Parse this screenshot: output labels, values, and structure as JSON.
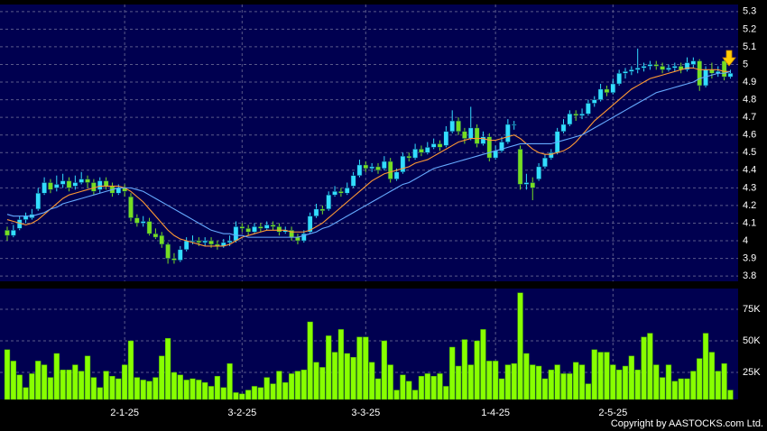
{
  "chart_data": [
    {
      "type": "candlestick",
      "ylim": [
        3.77,
        5.34
      ],
      "yticks": [
        5.3,
        5.2,
        5.1,
        5,
        4.9,
        4.8,
        4.7,
        4.6,
        4.5,
        4.4,
        4.3,
        4.2,
        4.1,
        4,
        3.9,
        3.8
      ],
      "grid": true,
      "up_color": "#33ddff",
      "down_color": "#77dd22",
      "ohlc": [
        [
          4.06,
          4.08,
          4.0,
          4.03
        ],
        [
          4.03,
          4.09,
          4.02,
          4.06
        ],
        [
          4.07,
          4.14,
          4.06,
          4.12
        ],
        [
          4.12,
          4.16,
          4.1,
          4.14
        ],
        [
          4.13,
          4.18,
          4.12,
          4.15
        ],
        [
          4.18,
          4.3,
          4.17,
          4.27
        ],
        [
          4.27,
          4.36,
          4.26,
          4.33
        ],
        [
          4.33,
          4.35,
          4.27,
          4.29
        ],
        [
          4.3,
          4.37,
          4.28,
          4.32
        ],
        [
          4.32,
          4.38,
          4.3,
          4.34
        ],
        [
          4.34,
          4.36,
          4.28,
          4.3
        ],
        [
          4.31,
          4.37,
          4.29,
          4.33
        ],
        [
          4.33,
          4.39,
          4.32,
          4.35
        ],
        [
          4.35,
          4.37,
          4.3,
          4.33
        ],
        [
          4.33,
          4.35,
          4.26,
          4.28
        ],
        [
          4.29,
          4.36,
          4.27,
          4.34
        ],
        [
          4.34,
          4.36,
          4.29,
          4.31
        ],
        [
          4.31,
          4.33,
          4.25,
          4.27
        ],
        [
          4.27,
          4.32,
          4.26,
          4.3
        ],
        [
          4.3,
          4.32,
          4.25,
          4.28
        ],
        [
          4.25,
          4.27,
          4.11,
          4.13
        ],
        [
          4.13,
          4.15,
          4.08,
          4.1
        ],
        [
          4.1,
          4.14,
          4.08,
          4.11
        ],
        [
          4.11,
          4.13,
          4.03,
          4.04
        ],
        [
          4.04,
          4.07,
          4.01,
          4.02
        ],
        [
          4.03,
          4.05,
          3.96,
          3.98
        ],
        [
          3.98,
          3.99,
          3.87,
          3.9
        ],
        [
          3.9,
          3.93,
          3.87,
          3.89
        ],
        [
          3.89,
          3.97,
          3.88,
          3.95
        ],
        [
          3.95,
          4.02,
          3.94,
          4.0
        ],
        [
          4.0,
          4.03,
          3.98,
          4.0
        ],
        [
          4.0,
          4.02,
          3.97,
          3.99
        ],
        [
          3.99,
          4.02,
          3.97,
          4.0
        ],
        [
          4.0,
          4.02,
          3.96,
          3.98
        ],
        [
          3.98,
          4.0,
          3.95,
          3.97
        ],
        [
          3.97,
          4.01,
          3.96,
          3.99
        ],
        [
          3.99,
          4.03,
          3.97,
          4.0
        ],
        [
          4.0,
          4.11,
          3.99,
          4.08
        ],
        [
          4.08,
          4.1,
          4.05,
          4.07
        ],
        [
          4.07,
          4.09,
          4.03,
          4.05
        ],
        [
          4.05,
          4.1,
          4.04,
          4.08
        ],
        [
          4.08,
          4.1,
          4.05,
          4.07
        ],
        [
          4.07,
          4.11,
          4.06,
          4.09
        ],
        [
          4.09,
          4.11,
          4.06,
          4.08
        ],
        [
          4.08,
          4.1,
          4.03,
          4.05
        ],
        [
          4.05,
          4.08,
          4.04,
          4.06
        ],
        [
          4.06,
          4.08,
          4.0,
          4.02
        ],
        [
          4.02,
          4.04,
          3.98,
          4.0
        ],
        [
          4.0,
          4.06,
          3.99,
          4.04
        ],
        [
          4.05,
          4.16,
          4.04,
          4.14
        ],
        [
          4.14,
          4.21,
          4.13,
          4.18
        ],
        [
          4.18,
          4.2,
          4.15,
          4.17
        ],
        [
          4.18,
          4.28,
          4.17,
          4.26
        ],
        [
          4.26,
          4.31,
          4.25,
          4.28
        ],
        [
          4.28,
          4.3,
          4.25,
          4.27
        ],
        [
          4.27,
          4.33,
          4.26,
          4.3
        ],
        [
          4.31,
          4.39,
          4.3,
          4.37
        ],
        [
          4.37,
          4.46,
          4.36,
          4.43
        ],
        [
          4.43,
          4.45,
          4.39,
          4.41
        ],
        [
          4.41,
          4.44,
          4.39,
          4.42
        ],
        [
          4.42,
          4.44,
          4.38,
          4.4
        ],
        [
          4.41,
          4.48,
          4.4,
          4.45
        ],
        [
          4.45,
          4.47,
          4.33,
          4.35
        ],
        [
          4.35,
          4.41,
          4.34,
          4.39
        ],
        [
          4.39,
          4.5,
          4.38,
          4.48
        ],
        [
          4.48,
          4.5,
          4.45,
          4.47
        ],
        [
          4.47,
          4.55,
          4.46,
          4.52
        ],
        [
          4.52,
          4.54,
          4.48,
          4.5
        ],
        [
          4.5,
          4.56,
          4.49,
          4.53
        ],
        [
          4.53,
          4.58,
          4.52,
          4.55
        ],
        [
          4.55,
          4.57,
          4.51,
          4.53
        ],
        [
          4.54,
          4.65,
          4.53,
          4.62
        ],
        [
          4.62,
          4.74,
          4.61,
          4.68
        ],
        [
          4.68,
          4.7,
          4.6,
          4.62
        ],
        [
          4.62,
          4.64,
          4.55,
          4.58
        ],
        [
          4.58,
          4.76,
          4.57,
          4.64
        ],
        [
          4.64,
          4.66,
          4.53,
          4.55
        ],
        [
          4.55,
          4.62,
          4.54,
          4.59
        ],
        [
          4.59,
          4.61,
          4.45,
          4.47
        ],
        [
          4.47,
          4.54,
          4.46,
          4.51
        ],
        [
          4.51,
          4.59,
          4.5,
          4.56
        ],
        [
          4.56,
          4.69,
          4.55,
          4.66
        ],
        [
          4.66,
          4.68,
          4.63,
          4.66
        ],
        [
          4.52,
          4.54,
          4.29,
          4.32
        ],
        [
          4.32,
          4.38,
          4.29,
          4.33
        ],
        [
          4.33,
          4.36,
          4.23,
          4.3
        ],
        [
          4.35,
          4.44,
          4.34,
          4.42
        ],
        [
          4.42,
          4.49,
          4.41,
          4.47
        ],
        [
          4.47,
          4.52,
          4.46,
          4.5
        ],
        [
          4.5,
          4.64,
          4.49,
          4.62
        ],
        [
          4.62,
          4.69,
          4.61,
          4.66
        ],
        [
          4.66,
          4.74,
          4.65,
          4.72
        ],
        [
          4.72,
          4.74,
          4.68,
          4.71
        ],
        [
          4.71,
          4.75,
          4.69,
          4.72
        ],
        [
          4.72,
          4.8,
          4.71,
          4.78
        ],
        [
          4.78,
          4.82,
          4.76,
          4.8
        ],
        [
          4.8,
          4.89,
          4.79,
          4.86
        ],
        [
          4.86,
          4.88,
          4.82,
          4.84
        ],
        [
          4.84,
          4.92,
          4.83,
          4.89
        ],
        [
          4.89,
          4.97,
          4.88,
          4.95
        ],
        [
          4.95,
          4.98,
          4.92,
          4.96
        ],
        [
          4.96,
          4.99,
          4.94,
          4.97
        ],
        [
          4.97,
          5.09,
          4.95,
          4.98
        ],
        [
          4.98,
          5.01,
          4.96,
          4.99
        ],
        [
          4.99,
          5.02,
          4.97,
          5.0
        ],
        [
          5.0,
          5.02,
          4.97,
          4.99
        ],
        [
          4.99,
          5.01,
          4.95,
          4.97
        ],
        [
          4.97,
          5.0,
          4.96,
          4.98
        ],
        [
          4.98,
          5.01,
          4.96,
          4.99
        ],
        [
          4.99,
          5.01,
          4.95,
          4.97
        ],
        [
          4.97,
          5.04,
          4.96,
          5.01
        ],
        [
          5.0,
          5.04,
          4.98,
          5.02
        ],
        [
          5.02,
          5.03,
          4.85,
          4.88
        ],
        [
          4.88,
          4.99,
          4.87,
          4.97
        ],
        [
          4.97,
          5.01,
          4.92,
          4.95
        ],
        [
          4.95,
          4.99,
          4.93,
          4.96
        ],
        [
          5.02,
          5.03,
          4.91,
          4.93
        ],
        [
          4.93,
          4.97,
          4.92,
          4.95
        ]
      ],
      "lines": [
        {
          "color": "#ff9933",
          "values": [
            4.12,
            4.11,
            4.1,
            4.09,
            4.1,
            4.12,
            4.15,
            4.18,
            4.21,
            4.24,
            4.26,
            4.27,
            4.28,
            4.29,
            4.3,
            4.31,
            4.31,
            4.31,
            4.31,
            4.3,
            4.28,
            4.25,
            4.22,
            4.18,
            4.14,
            4.1,
            4.06,
            4.03,
            4.01,
            4.0,
            3.99,
            3.98,
            3.97,
            3.97,
            3.97,
            3.97,
            3.98,
            4.0,
            4.02,
            4.03,
            4.04,
            4.05,
            4.06,
            4.06,
            4.06,
            4.06,
            4.05,
            4.05,
            4.05,
            4.06,
            4.08,
            4.1,
            4.13,
            4.16,
            4.19,
            4.22,
            4.25,
            4.28,
            4.31,
            4.34,
            4.36,
            4.38,
            4.39,
            4.4,
            4.41,
            4.42,
            4.44,
            4.45,
            4.46,
            4.48,
            4.5,
            4.52,
            4.54,
            4.56,
            4.57,
            4.58,
            4.58,
            4.58,
            4.57,
            4.57,
            4.58,
            4.59,
            4.6,
            4.58,
            4.55,
            4.52,
            4.5,
            4.49,
            4.49,
            4.5,
            4.51,
            4.53,
            4.56,
            4.6,
            4.64,
            4.68,
            4.71,
            4.74,
            4.77,
            4.8,
            4.83,
            4.86,
            4.88,
            4.9,
            4.92,
            4.93,
            4.94,
            4.95,
            4.96,
            4.97,
            4.98,
            4.98,
            4.97,
            4.97,
            4.97,
            4.97,
            4.96,
            4.96
          ]
        },
        {
          "color": "#66aaff",
          "values": [
            4.15,
            4.14,
            4.14,
            4.14,
            4.14,
            4.15,
            4.16,
            4.18,
            4.19,
            4.21,
            4.22,
            4.23,
            4.24,
            4.25,
            4.26,
            4.27,
            4.28,
            4.29,
            4.3,
            4.3,
            4.3,
            4.29,
            4.28,
            4.26,
            4.24,
            4.22,
            4.2,
            4.18,
            4.16,
            4.14,
            4.12,
            4.1,
            4.08,
            4.06,
            4.05,
            4.04,
            4.04,
            4.03,
            4.03,
            4.02,
            4.02,
            4.02,
            4.02,
            4.02,
            4.02,
            4.02,
            4.02,
            4.02,
            4.03,
            4.04,
            4.05,
            4.07,
            4.08,
            4.1,
            4.12,
            4.14,
            4.16,
            4.18,
            4.2,
            4.22,
            4.24,
            4.26,
            4.28,
            4.3,
            4.32,
            4.33,
            4.35,
            4.37,
            4.39,
            4.41,
            4.42,
            4.43,
            4.44,
            4.45,
            4.46,
            4.47,
            4.48,
            4.49,
            4.5,
            4.51,
            4.52,
            4.53,
            4.54,
            4.55,
            4.55,
            4.55,
            4.55,
            4.55,
            4.55,
            4.56,
            4.57,
            4.58,
            4.59,
            4.6,
            4.62,
            4.64,
            4.66,
            4.68,
            4.7,
            4.72,
            4.74,
            4.76,
            4.78,
            4.8,
            4.82,
            4.84,
            4.85,
            4.86,
            4.87,
            4.88,
            4.89,
            4.9,
            4.92,
            4.93,
            4.94,
            4.95,
            4.95,
            4.96
          ]
        }
      ]
    },
    {
      "type": "bar",
      "ylim": [
        3600,
        91400
      ],
      "yticks": [
        {
          "value": 75000,
          "label": "75K"
        },
        {
          "value": 50000,
          "label": "50K"
        },
        {
          "value": 25000,
          "label": "25K"
        }
      ],
      "grid": true,
      "color": "#88ff00",
      "categories": [
        null,
        null,
        null,
        null,
        null,
        null,
        null,
        null,
        null,
        null,
        null,
        null,
        null,
        null,
        null,
        null,
        null,
        null,
        null,
        "2-1-25",
        null,
        null,
        null,
        null,
        null,
        null,
        null,
        null,
        null,
        null,
        null,
        null,
        null,
        null,
        null,
        null,
        null,
        null,
        "3-2-25",
        null,
        null,
        null,
        null,
        null,
        null,
        null,
        null,
        null,
        null,
        null,
        null,
        null,
        null,
        null,
        null,
        null,
        null,
        null,
        "3-3-25",
        null,
        null,
        null,
        null,
        null,
        null,
        null,
        null,
        null,
        null,
        null,
        null,
        null,
        null,
        null,
        null,
        null,
        null,
        null,
        null,
        "1-4-25",
        null,
        null,
        null,
        null,
        null,
        null,
        null,
        null,
        null,
        null,
        null,
        null,
        null,
        null,
        null,
        null,
        null,
        null,
        "2-5-25",
        null,
        null,
        null,
        null,
        null,
        null,
        null,
        null,
        null,
        null,
        null,
        null,
        null,
        null,
        null,
        null,
        null,
        null,
        null
      ],
      "values": [
        43000,
        34000,
        23000,
        13000,
        24000,
        34000,
        31000,
        21000,
        40000,
        27000,
        27000,
        31000,
        26000,
        38000,
        21000,
        13000,
        26000,
        22000,
        20000,
        31000,
        50000,
        21000,
        19000,
        18000,
        21000,
        38000,
        52000,
        25000,
        23000,
        19000,
        20000,
        19000,
        17000,
        14000,
        22000,
        13000,
        32000,
        9000,
        8000,
        11000,
        14000,
        13000,
        21000,
        16000,
        26000,
        17000,
        24000,
        26000,
        27000,
        65000,
        33000,
        29000,
        54000,
        41000,
        59000,
        40000,
        37000,
        53000,
        53000,
        33000,
        20000,
        50000,
        31000,
        11000,
        23000,
        18000,
        11000,
        22000,
        24000,
        22000,
        24000,
        14000,
        45000,
        30000,
        51000,
        31000,
        50000,
        59000,
        34000,
        34000,
        20000,
        31000,
        32000,
        88000,
        40000,
        31000,
        30000,
        20000,
        27000,
        31000,
        24000,
        24000,
        33000,
        31000,
        16000,
        43000,
        41000,
        41000,
        31000,
        27000,
        30000,
        38000,
        27000,
        53000,
        56000,
        31000,
        21000,
        31000,
        18000,
        20000,
        20000,
        26000,
        36000,
        56000,
        41000,
        26000,
        32000,
        11000
      ]
    }
  ],
  "copyright": "Copyright by AASTOCKS.com Ltd."
}
